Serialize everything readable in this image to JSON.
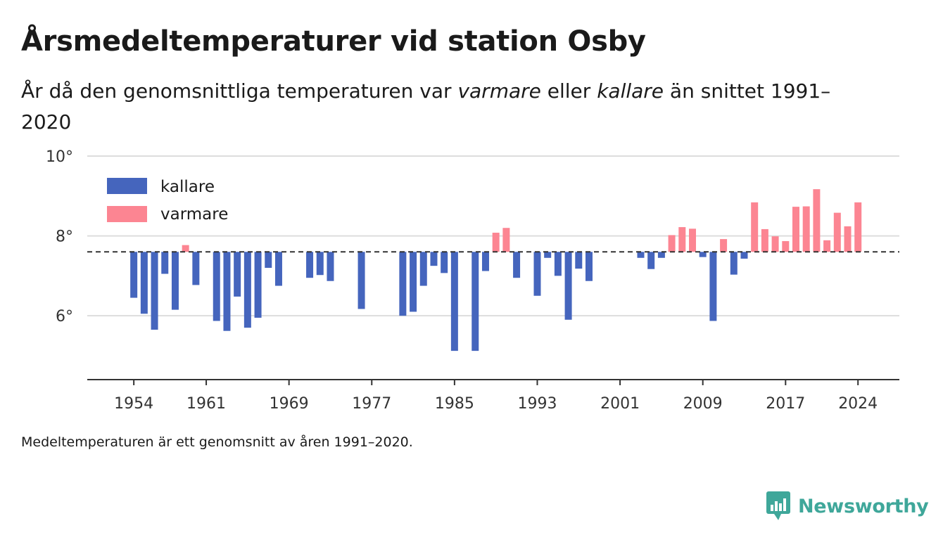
{
  "header": {
    "title": "Årsmedeltemperaturer vid station Osby",
    "subtitle_part1": "År då den genomsnittliga temperaturen var ",
    "subtitle_warm": "varmare",
    "subtitle_part2": " eller ",
    "subtitle_cold": "kallare",
    "subtitle_part3": " än snittet 1991–2020"
  },
  "footnote": "Medeltemperaturen är ett genomsnitt av åren 1991–2020.",
  "brand": {
    "name": "Newsworthy",
    "color": "#3fa79a"
  },
  "colors": {
    "kallare": "#4565bd",
    "varmare": "#fc8592",
    "reference": "#333333",
    "grid": "#dddddd"
  },
  "chart_data": {
    "type": "bar",
    "baseline": 7.6,
    "ylim": [
      4.4,
      10
    ],
    "yticks": [
      6,
      8,
      10
    ],
    "ytick_labels": [
      "6°",
      "8°",
      "10°"
    ],
    "xlim": [
      1949.5,
      2028
    ],
    "xticks": [
      1954,
      1961,
      1969,
      1977,
      1985,
      1993,
      2001,
      2009,
      2017,
      2024
    ],
    "legend": {
      "position": "top-left",
      "entries": [
        "kallare",
        "varmare"
      ]
    },
    "grid": true,
    "x": [
      1954,
      1955,
      1956,
      1957,
      1958,
      1959,
      1960,
      1962,
      1963,
      1964,
      1965,
      1966,
      1967,
      1968,
      1971,
      1972,
      1973,
      1976,
      1980,
      1981,
      1982,
      1983,
      1984,
      1985,
      1987,
      1988,
      1989,
      1990,
      1991,
      1993,
      1994,
      1995,
      1996,
      1997,
      1998,
      2003,
      2004,
      2005,
      2006,
      2007,
      2008,
      2009,
      2010,
      2011,
      2012,
      2013,
      2014,
      2015,
      2016,
      2017,
      2018,
      2019,
      2020,
      2021,
      2022,
      2023,
      2024
    ],
    "values": [
      6.45,
      6.05,
      5.65,
      7.05,
      6.15,
      7.77,
      6.77,
      5.87,
      5.62,
      6.48,
      5.7,
      5.95,
      7.2,
      6.75,
      6.95,
      7.02,
      6.87,
      6.17,
      6.0,
      6.1,
      6.75,
      7.25,
      7.07,
      5.12,
      5.12,
      7.12,
      8.08,
      8.2,
      6.95,
      6.5,
      7.45,
      7.0,
      5.9,
      7.18,
      6.87,
      7.45,
      7.17,
      7.45,
      8.02,
      8.22,
      8.18,
      7.47,
      5.87,
      7.92,
      7.03,
      7.43,
      8.84,
      8.17,
      7.99,
      7.87,
      8.73,
      8.74,
      9.17,
      7.89,
      8.58,
      8.24,
      8.84
    ]
  }
}
